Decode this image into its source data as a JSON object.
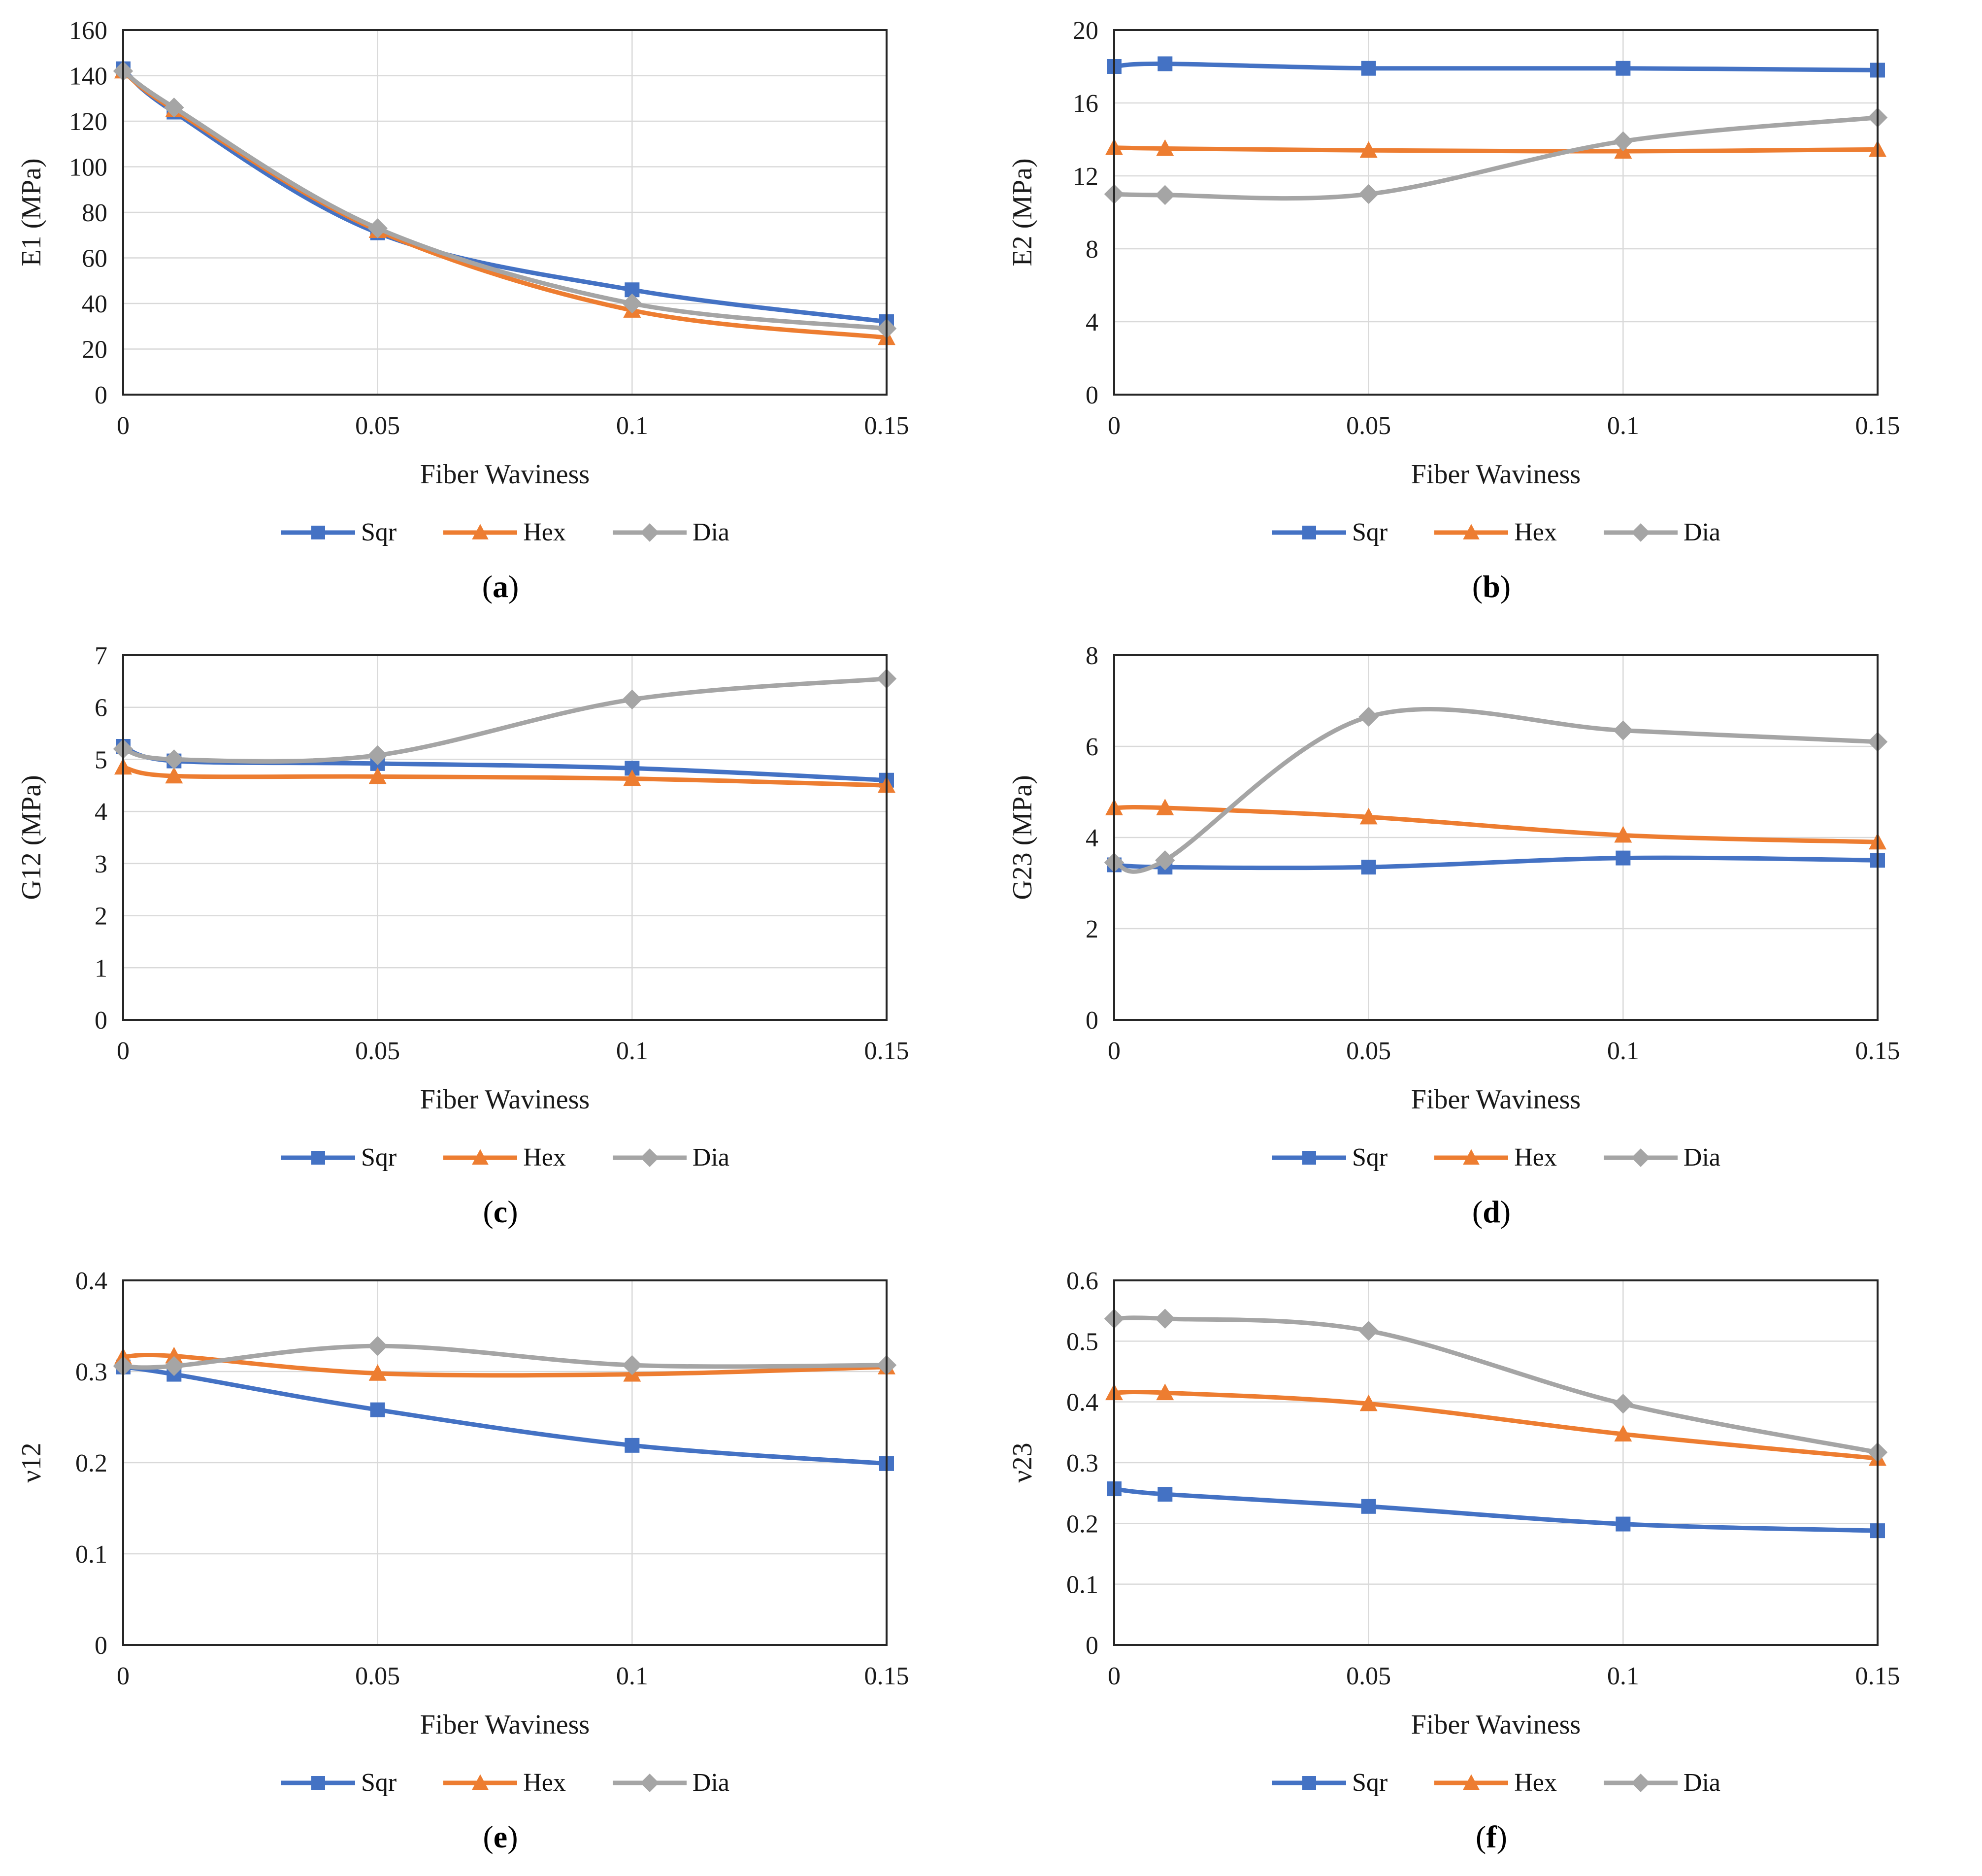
{
  "figure": {
    "x_axis_label": "Fiber Waviness",
    "xlim": [
      0,
      0.15
    ],
    "x_ticks": [
      0,
      0.05,
      0.1,
      0.15
    ],
    "series_names": [
      "Sqr",
      "Hex",
      "Dia"
    ],
    "series_colors": [
      "#4472C4",
      "#ED7D31",
      "#A5A5A5"
    ],
    "series_markers": [
      "square",
      "triangle",
      "diamond"
    ],
    "grid_color": "#D9D9D9",
    "axis_color": "#262626",
    "text_color": "#1A1A1A"
  },
  "chart_data": [
    {
      "type": "line",
      "title": "",
      "ylabel": "E1 (MPa)",
      "xlabel": "Fiber Waviness",
      "ylim": [
        0,
        160
      ],
      "y_step": 20,
      "x": [
        0,
        0.01,
        0.05,
        0.1,
        0.15
      ],
      "series": [
        {
          "name": "Sqr",
          "values": [
            143,
            124,
            71,
            46,
            32
          ]
        },
        {
          "name": "Hex",
          "values": [
            142,
            125,
            72,
            37,
            25
          ]
        },
        {
          "name": "Dia",
          "values": [
            142,
            126,
            73,
            40,
            29
          ]
        }
      ],
      "legend_position": "bottom",
      "caption": {
        "open": "(",
        "letter": "a",
        "close": ")"
      }
    },
    {
      "type": "line",
      "title": "",
      "ylabel": "E2 (MPa)",
      "xlabel": "Fiber Waviness",
      "ylim": [
        0,
        20
      ],
      "y_step": 4,
      "x": [
        0,
        0.01,
        0.05,
        0.1,
        0.15
      ],
      "series": [
        {
          "name": "Sqr",
          "values": [
            18.0,
            18.15,
            17.9,
            17.9,
            17.8
          ]
        },
        {
          "name": "Hex",
          "values": [
            13.55,
            13.5,
            13.4,
            13.35,
            13.45
          ]
        },
        {
          "name": "Dia",
          "values": [
            11.0,
            10.95,
            11.0,
            13.9,
            15.2
          ]
        }
      ],
      "legend_position": "bottom",
      "caption": {
        "open": "(",
        "letter": "b",
        "close": ")"
      }
    },
    {
      "type": "line",
      "title": "",
      "ylabel": "G12 (MPa)",
      "xlabel": "Fiber Waviness",
      "ylim": [
        0,
        7
      ],
      "y_step": 1,
      "x": [
        0,
        0.01,
        0.05,
        0.1,
        0.15
      ],
      "series": [
        {
          "name": "Sqr",
          "values": [
            5.25,
            4.97,
            4.92,
            4.83,
            4.6
          ]
        },
        {
          "name": "Hex",
          "values": [
            4.85,
            4.68,
            4.67,
            4.63,
            4.5
          ]
        },
        {
          "name": "Dia",
          "values": [
            5.2,
            5.0,
            5.08,
            6.15,
            6.55
          ]
        }
      ],
      "legend_position": "bottom",
      "caption": {
        "open": "(",
        "letter": "c",
        "close": ")"
      }
    },
    {
      "type": "line",
      "title": "",
      "ylabel": "G23 (MPa)",
      "xlabel": "Fiber Waviness",
      "ylim": [
        0,
        8
      ],
      "y_step": 2,
      "x": [
        0,
        0.01,
        0.05,
        0.1,
        0.15
      ],
      "series": [
        {
          "name": "Sqr",
          "values": [
            3.4,
            3.35,
            3.35,
            3.55,
            3.5
          ]
        },
        {
          "name": "Hex",
          "values": [
            4.65,
            4.65,
            4.45,
            4.05,
            3.9
          ]
        },
        {
          "name": "Dia",
          "values": [
            3.45,
            3.5,
            6.65,
            6.35,
            6.1
          ]
        }
      ],
      "legend_position": "bottom",
      "caption": {
        "open": "(",
        "letter": "d",
        "close": ")"
      }
    },
    {
      "type": "line",
      "title": "",
      "ylabel": "ν12",
      "xlabel": "Fiber Waviness",
      "ylim": [
        0,
        0.4
      ],
      "y_step": 0.1,
      "x": [
        0,
        0.01,
        0.05,
        0.1,
        0.15
      ],
      "series": [
        {
          "name": "Sqr",
          "values": [
            0.305,
            0.297,
            0.258,
            0.219,
            0.199
          ]
        },
        {
          "name": "Hex",
          "values": [
            0.316,
            0.317,
            0.298,
            0.297,
            0.305
          ]
        },
        {
          "name": "Dia",
          "values": [
            0.306,
            0.306,
            0.328,
            0.307,
            0.307
          ]
        }
      ],
      "legend_position": "bottom",
      "caption": {
        "open": "(",
        "letter": "e",
        "close": ")"
      }
    },
    {
      "type": "line",
      "title": "",
      "ylabel": "ν23",
      "xlabel": "Fiber Waviness",
      "ylim": [
        0,
        0.6
      ],
      "y_step": 0.1,
      "x": [
        0,
        0.01,
        0.05,
        0.1,
        0.15
      ],
      "series": [
        {
          "name": "Sqr",
          "values": [
            0.257,
            0.248,
            0.228,
            0.199,
            0.188
          ]
        },
        {
          "name": "Hex",
          "values": [
            0.415,
            0.415,
            0.397,
            0.347,
            0.307
          ]
        },
        {
          "name": "Dia",
          "values": [
            0.537,
            0.537,
            0.517,
            0.397,
            0.317
          ]
        }
      ],
      "legend_position": "bottom",
      "caption": {
        "open": "(",
        "letter": "f",
        "close": ")"
      }
    }
  ]
}
